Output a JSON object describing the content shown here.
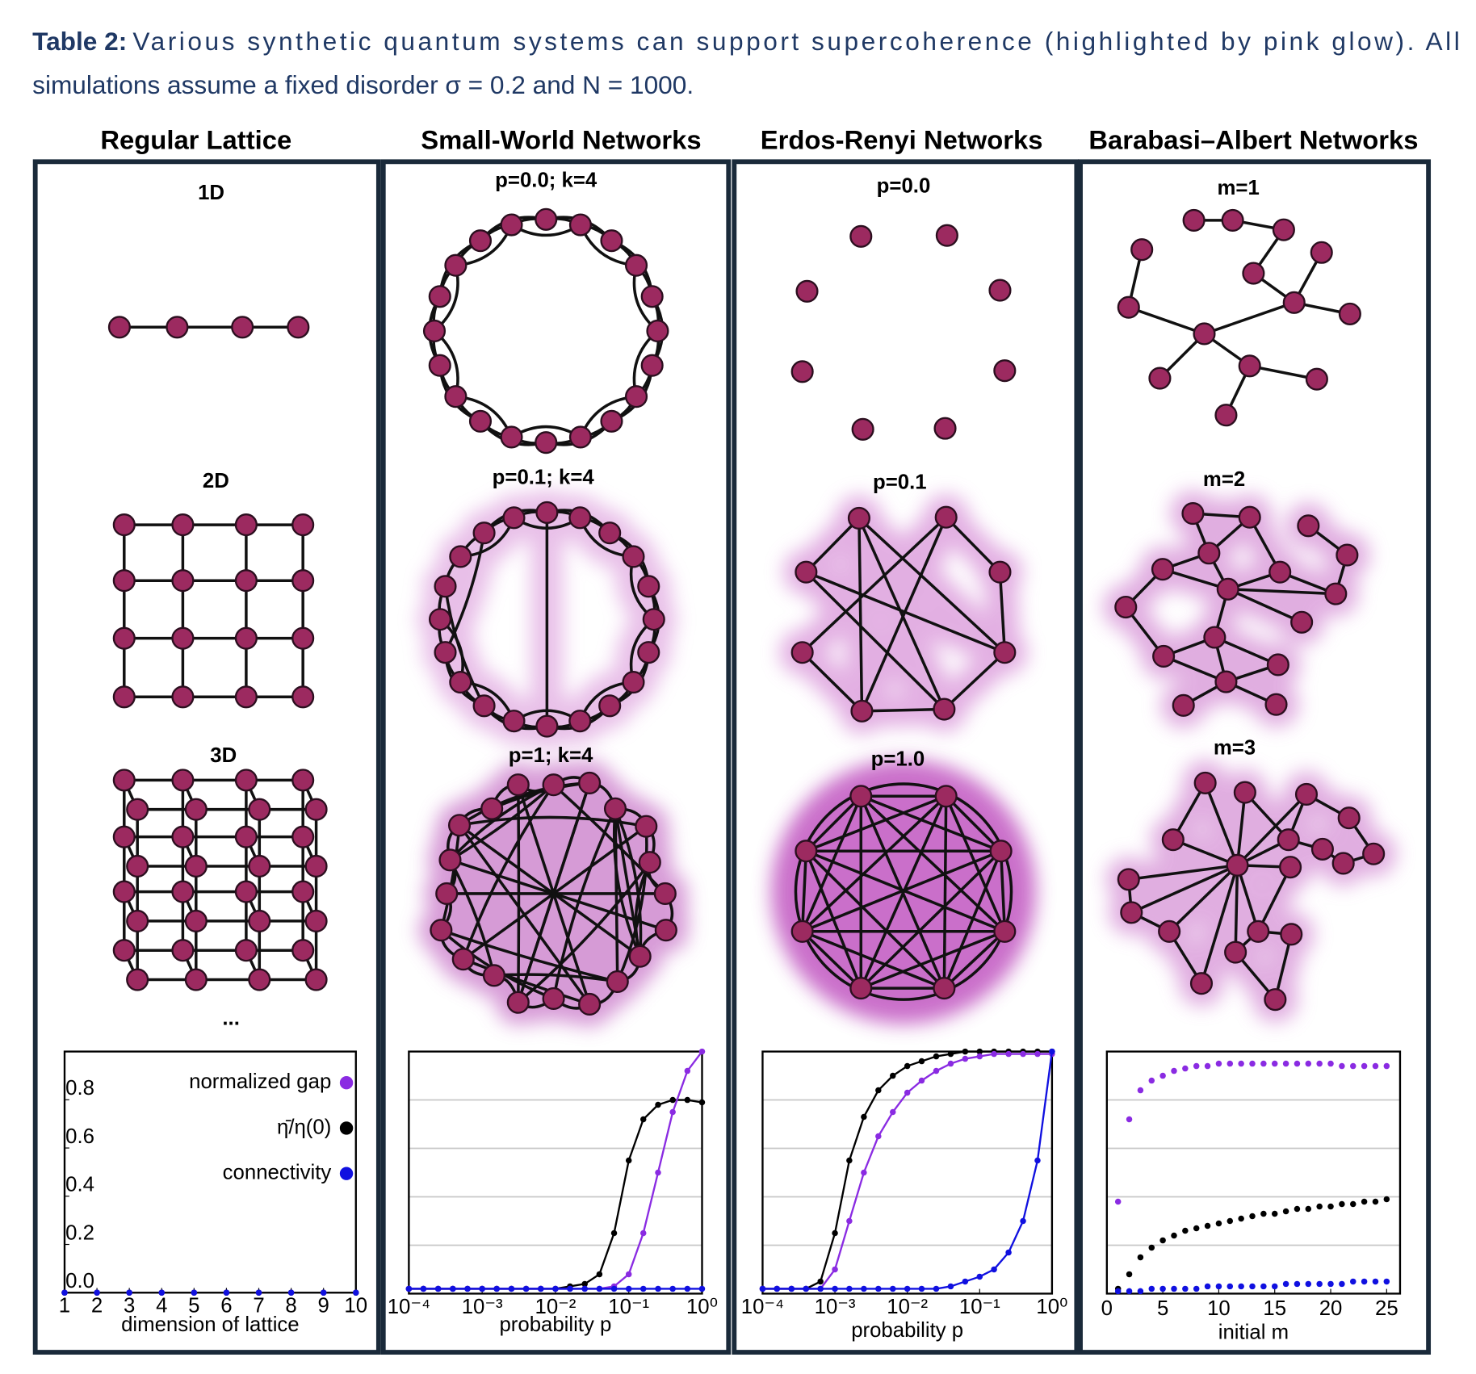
{
  "caption": {
    "label": "Table 2:",
    "line1": "Various synthetic quantum systems can support supercoherence (highlighted by pink glow). All",
    "line2": "simulations assume a fixed disorder σ = 0.2 and N = 1000."
  },
  "columns": [
    {
      "title": "Regular Lattice",
      "panels": [
        "1D",
        "2D",
        "3D"
      ],
      "more": "..."
    },
    {
      "title": "Small-World Networks",
      "panels": [
        "p=0.0; k=4",
        "p=0.1; k=4",
        "p=1; k=4"
      ]
    },
    {
      "title": "Erdos-Renyi Networks",
      "panels": [
        "p=0.0",
        "p=0.1",
        "p=1.0"
      ]
    },
    {
      "title": "Barabasi–Albert Networks",
      "panels": [
        "m=1",
        "m=2",
        "m=3"
      ]
    }
  ],
  "chart_data": [
    {
      "type": "scatter",
      "xlabel": "dimension of lattice",
      "x": [
        1,
        2,
        3,
        4,
        5,
        6,
        7,
        8,
        9,
        10
      ],
      "xlim": [
        1,
        10
      ],
      "xticks": [
        1,
        2,
        3,
        4,
        5,
        6,
        7,
        8,
        9,
        10
      ],
      "ylim": [
        0,
        1
      ],
      "yticks": [
        {
          "value": 0,
          "label": "0.0"
        },
        0.2,
        0.4,
        0.6,
        0.8
      ],
      "grid": false,
      "series": [
        {
          "name": "normalized gap",
          "color": "#8a2be2",
          "values": [
            0,
            0,
            0,
            0,
            0,
            0,
            0,
            0,
            0,
            0
          ]
        },
        {
          "name": "η̄/η(0)",
          "color": "#000000",
          "values": [
            0,
            0,
            0,
            0,
            0,
            0,
            0,
            0,
            0,
            0
          ]
        },
        {
          "name": "connectivity",
          "color": "#1010e0",
          "values": [
            0,
            0,
            0,
            0,
            0,
            0,
            0,
            0,
            0,
            0
          ]
        }
      ]
    },
    {
      "type": "line",
      "xscale": "log",
      "xlabel": "probability p",
      "x": [
        0.0001,
        0.000158,
        0.000251,
        0.000398,
        0.000631,
        0.001,
        0.00158,
        0.00251,
        0.00398,
        0.00631,
        0.01,
        0.0158,
        0.0251,
        0.0398,
        0.0631,
        0.1,
        0.158,
        0.251,
        0.398,
        0.631,
        1
      ],
      "xlim": [
        0.0001,
        1
      ],
      "xticks": [
        {
          "value": 0.0001,
          "label": "10⁻⁴"
        },
        {
          "value": 0.001,
          "label": "10⁻³"
        },
        {
          "value": 0.01,
          "label": "10⁻²"
        },
        {
          "value": 0.1,
          "label": "10⁻¹"
        },
        {
          "value": 1,
          "label": "10⁰"
        }
      ],
      "ylim": [
        0,
        1
      ],
      "ygrid": [
        0.2,
        0.4,
        0.6,
        0.8
      ],
      "series": [
        {
          "color": "#000000",
          "values": [
            0.02,
            0.02,
            0.02,
            0.02,
            0.02,
            0.02,
            0.02,
            0.02,
            0.02,
            0.02,
            0.02,
            0.03,
            0.04,
            0.08,
            0.25,
            0.55,
            0.72,
            0.78,
            0.8,
            0.8,
            0.79
          ]
        },
        {
          "color": "#8a2be2",
          "values": [
            0.02,
            0.02,
            0.02,
            0.02,
            0.02,
            0.02,
            0.02,
            0.02,
            0.02,
            0.02,
            0.02,
            0.02,
            0.02,
            0.02,
            0.03,
            0.08,
            0.25,
            0.5,
            0.75,
            0.92,
            1.0
          ]
        },
        {
          "color": "#1010e0",
          "values": [
            0.02,
            0.02,
            0.02,
            0.02,
            0.02,
            0.02,
            0.02,
            0.02,
            0.02,
            0.02,
            0.02,
            0.02,
            0.02,
            0.02,
            0.02,
            0.02,
            0.02,
            0.02,
            0.02,
            0.02,
            0.02
          ]
        }
      ]
    },
    {
      "type": "line",
      "xscale": "log",
      "xlabel": "probability p",
      "x": [
        0.0001,
        0.000158,
        0.000251,
        0.000398,
        0.000631,
        0.001,
        0.00158,
        0.00251,
        0.00398,
        0.00631,
        0.01,
        0.0158,
        0.0251,
        0.0398,
        0.0631,
        0.1,
        0.158,
        0.251,
        0.398,
        0.631,
        1
      ],
      "xlim": [
        0.0001,
        1
      ],
      "xticks": [
        {
          "value": 0.0001,
          "label": "10⁻⁴"
        },
        {
          "value": 0.001,
          "label": "10⁻³"
        },
        {
          "value": 0.01,
          "label": "10⁻²"
        },
        {
          "value": 0.1,
          "label": "10⁻¹"
        },
        {
          "value": 1,
          "label": "10⁰"
        }
      ],
      "ylim": [
        0,
        1
      ],
      "ygrid": [
        0.2,
        0.4,
        0.6,
        0.8
      ],
      "series": [
        {
          "color": "#000000",
          "values": [
            0.02,
            0.02,
            0.02,
            0.02,
            0.05,
            0.25,
            0.55,
            0.73,
            0.84,
            0.9,
            0.94,
            0.96,
            0.98,
            0.99,
            1.0,
            1.0,
            1.0,
            1.0,
            1.0,
            1.0,
            1.0
          ]
        },
        {
          "color": "#8a2be2",
          "values": [
            0.02,
            0.02,
            0.02,
            0.02,
            0.02,
            0.1,
            0.3,
            0.5,
            0.65,
            0.75,
            0.83,
            0.88,
            0.92,
            0.95,
            0.97,
            0.98,
            0.99,
            0.99,
            0.99,
            0.99,
            0.99
          ]
        },
        {
          "color": "#1010e0",
          "values": [
            0.02,
            0.02,
            0.02,
            0.02,
            0.02,
            0.02,
            0.02,
            0.02,
            0.02,
            0.02,
            0.02,
            0.02,
            0.02,
            0.03,
            0.05,
            0.07,
            0.1,
            0.17,
            0.3,
            0.55,
            1.0
          ]
        }
      ]
    },
    {
      "type": "scatter",
      "xlabel": "initial m",
      "x": [
        1,
        2,
        3,
        4,
        5,
        6,
        7,
        8,
        9,
        10,
        11,
        12,
        13,
        14,
        15,
        16,
        17,
        18,
        19,
        20,
        21,
        22,
        23,
        24,
        25
      ],
      "xlim": [
        0,
        26.2
      ],
      "xticks": [
        0,
        5,
        10,
        15,
        20,
        25
      ],
      "ylim": [
        0,
        1
      ],
      "ygrid": [
        0.2,
        0.4,
        0.6,
        0.8
      ],
      "series": [
        {
          "color": "#8a2be2",
          "values": [
            0.38,
            0.72,
            0.84,
            0.88,
            0.9,
            0.92,
            0.93,
            0.94,
            0.94,
            0.95,
            0.95,
            0.95,
            0.95,
            0.95,
            0.95,
            0.95,
            0.95,
            0.95,
            0.95,
            0.95,
            0.94,
            0.94,
            0.94,
            0.94,
            0.94
          ]
        },
        {
          "color": "#000000",
          "values": [
            0.02,
            0.08,
            0.15,
            0.19,
            0.22,
            0.24,
            0.26,
            0.27,
            0.28,
            0.29,
            0.3,
            0.31,
            0.32,
            0.33,
            0.33,
            0.34,
            0.35,
            0.35,
            0.36,
            0.36,
            0.37,
            0.37,
            0.38,
            0.38,
            0.39
          ]
        },
        {
          "color": "#1010e0",
          "values": [
            0.01,
            0.01,
            0.01,
            0.02,
            0.02,
            0.02,
            0.02,
            0.02,
            0.03,
            0.03,
            0.03,
            0.03,
            0.03,
            0.03,
            0.03,
            0.04,
            0.04,
            0.04,
            0.04,
            0.04,
            0.04,
            0.05,
            0.05,
            0.05,
            0.05
          ]
        }
      ]
    }
  ]
}
